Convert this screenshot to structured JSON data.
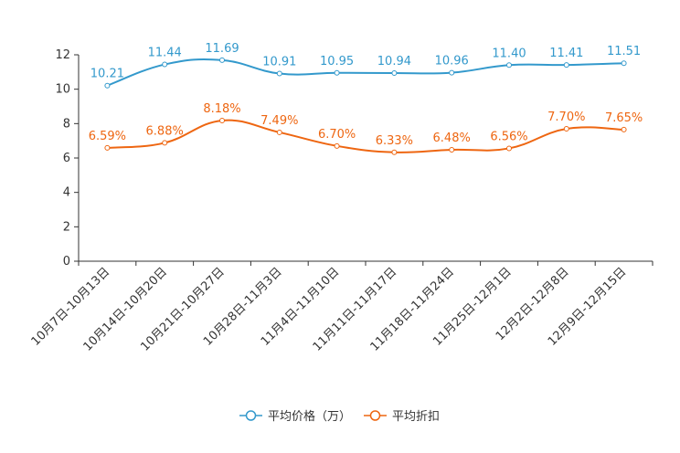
{
  "chart_data": {
    "type": "line",
    "categories": [
      "10月7日-10月13日",
      "10月14日-10月20日",
      "10月21日-10月27日",
      "10月28日-11月3日",
      "11月4日-11月10日",
      "11月11日-11月17日",
      "11月18日-11月24日",
      "11月25日-12月1日",
      "12月2日-12月8日",
      "12月9日-12月15日"
    ],
    "series": [
      {
        "name": "平均价格（万）",
        "color": "#3399cc",
        "values": [
          10.21,
          11.44,
          11.69,
          10.91,
          10.95,
          10.94,
          10.96,
          11.4,
          11.41,
          11.51
        ],
        "labels": [
          "10.21",
          "11.44",
          "11.69",
          "10.91",
          "10.95",
          "10.94",
          "10.96",
          "11.40",
          "11.41",
          "11.51"
        ]
      },
      {
        "name": "平均折扣",
        "color": "#ee6611",
        "values": [
          6.59,
          6.88,
          8.18,
          7.49,
          6.7,
          6.33,
          6.48,
          6.56,
          7.7,
          7.65
        ],
        "labels": [
          "6.59%",
          "6.88%",
          "8.18%",
          "7.49%",
          "6.70%",
          "6.33%",
          "6.48%",
          "6.56%",
          "7.70%",
          "7.65%"
        ]
      }
    ],
    "ylim": [
      0,
      12
    ],
    "yticks": [
      "0",
      "2",
      "4",
      "6",
      "8",
      "10",
      "12"
    ],
    "legend": "bottom-center",
    "grid": false
  }
}
